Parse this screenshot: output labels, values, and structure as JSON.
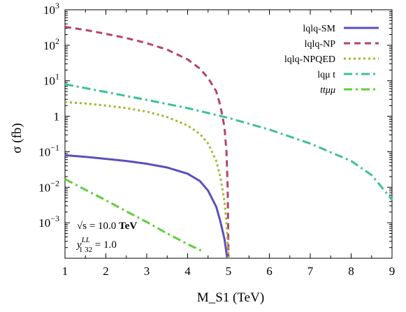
{
  "chart_data": {
    "type": "line",
    "xlabel": "M_S1 (TeV)",
    "ylabel": "σ (fb)",
    "xlim": [
      1,
      9
    ],
    "ylim": [
      0.0001,
      1000
    ],
    "yscale": "log",
    "grid": false,
    "legend_position": "top-right",
    "x_ticks": [
      {
        "value": 1,
        "label": "1"
      },
      {
        "value": 2,
        "label": "2"
      },
      {
        "value": 3,
        "label": "3"
      },
      {
        "value": 4,
        "label": "4"
      },
      {
        "value": 5,
        "label": "5"
      },
      {
        "value": 6,
        "label": "6"
      },
      {
        "value": 7,
        "label": "7"
      },
      {
        "value": 8,
        "label": "8"
      },
      {
        "value": 9,
        "label": "9"
      }
    ],
    "y_ticks": [
      {
        "value": 0.001,
        "base": "10",
        "exp": "−3"
      },
      {
        "value": 0.01,
        "base": "10",
        "exp": "−2"
      },
      {
        "value": 0.1,
        "base": "10",
        "exp": "−1"
      },
      {
        "value": 1,
        "base": "1",
        "exp": ""
      },
      {
        "value": 10,
        "base": "10",
        "exp": "1"
      },
      {
        "value": 100,
        "base": "10",
        "exp": "2"
      },
      {
        "value": 1000,
        "base": "10",
        "exp": "3"
      }
    ],
    "series": [
      {
        "name": "lqlq-SM",
        "color": "#5a4fbf",
        "dash": "solid",
        "points": [
          [
            1,
            0.08
          ],
          [
            1.5,
            0.072
          ],
          [
            2,
            0.063
          ],
          [
            2.5,
            0.055
          ],
          [
            3,
            0.046
          ],
          [
            3.5,
            0.036
          ],
          [
            4,
            0.024
          ],
          [
            4.3,
            0.015
          ],
          [
            4.5,
            0.008
          ],
          [
            4.7,
            0.0028
          ],
          [
            4.8,
            0.0011
          ],
          [
            4.9,
            0.00035
          ],
          [
            4.97,
            0.0001
          ]
        ]
      },
      {
        "name": "lqlq-NP",
        "color": "#b5436b",
        "dash": "dashed",
        "points": [
          [
            1,
            330
          ],
          [
            1.5,
            270
          ],
          [
            2,
            210
          ],
          [
            2.5,
            160
          ],
          [
            3,
            115
          ],
          [
            3.5,
            75
          ],
          [
            4,
            40
          ],
          [
            4.3,
            22
          ],
          [
            4.5,
            12
          ],
          [
            4.7,
            5
          ],
          [
            4.8,
            2
          ],
          [
            4.9,
            0.5
          ],
          [
            4.95,
            0.1
          ],
          [
            4.98,
            0.01
          ],
          [
            5.0,
            0.0001
          ]
        ]
      },
      {
        "name": "lqlq-NPQED",
        "color": "#a6b52e",
        "dash": "dotted",
        "points": [
          [
            1,
            2.5
          ],
          [
            1.5,
            2.3
          ],
          [
            2,
            2.0
          ],
          [
            2.5,
            1.7
          ],
          [
            3,
            1.35
          ],
          [
            3.5,
            0.95
          ],
          [
            4,
            0.55
          ],
          [
            4.3,
            0.32
          ],
          [
            4.5,
            0.17
          ],
          [
            4.7,
            0.055
          ],
          [
            4.8,
            0.02
          ],
          [
            4.9,
            0.004
          ],
          [
            4.95,
            0.001
          ],
          [
            5.0,
            0.0001
          ]
        ]
      },
      {
        "name": "lqμ t",
        "color": "#3fbf9a",
        "dash": "dashdot",
        "points": [
          [
            1,
            8
          ],
          [
            2,
            4.8
          ],
          [
            3,
            2.9
          ],
          [
            4,
            1.7
          ],
          [
            5,
            0.9
          ],
          [
            6,
            0.42
          ],
          [
            7,
            0.17
          ],
          [
            8,
            0.055
          ],
          [
            8.5,
            0.022
          ],
          [
            9,
            0.0045
          ]
        ]
      },
      {
        "name": "ttμμ",
        "color": "#5ecf3a",
        "dash": "dashdot",
        "points": [
          [
            1,
            0.017
          ],
          [
            1.5,
            0.0085
          ],
          [
            2,
            0.0043
          ],
          [
            2.5,
            0.0021
          ],
          [
            3,
            0.00105
          ],
          [
            3.5,
            0.0005
          ],
          [
            4,
            0.00025
          ],
          [
            4.35,
            0.00016
          ]
        ]
      }
    ],
    "annotations": [
      {
        "prefix": "√s = 10.0",
        "bold": "TeV"
      },
      {
        "main": "y",
        "sup": "LL",
        "sub": "1 32",
        "rest": " = 1.0"
      }
    ]
  }
}
